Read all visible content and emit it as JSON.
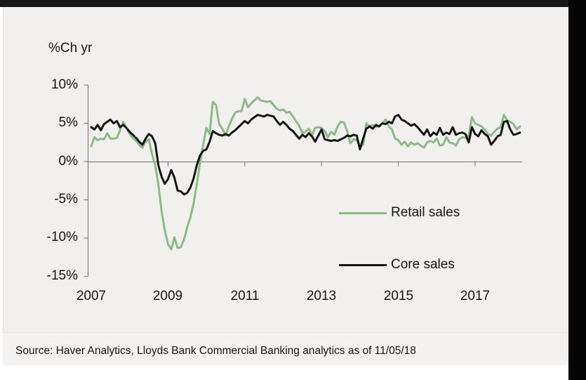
{
  "frame": {
    "top_bar_color": "#171717",
    "side_bar_color": "#050505",
    "panel_bg": "#f1f0ee"
  },
  "chart": {
    "axis_title": "%Ch yr",
    "legend": [
      {
        "label": "Retail sales",
        "color": "#8bba84"
      },
      {
        "label": "Core sales",
        "color": "#141414"
      }
    ],
    "source": "Source: Haver Analytics, Lloyds Bank Commercial Banking analytics as of 11/05/18"
  },
  "chart_data": {
    "type": "line",
    "title": "",
    "ylabel": "%Ch yr",
    "frequency": "monthly",
    "x_start": "2007-01",
    "x_end": "2018-03",
    "ylim": [
      -15,
      10
    ],
    "grid": false,
    "legend_position": "inside-right",
    "y_ticks": [
      "10%",
      "5%",
      "0%",
      "-5%",
      "-10%",
      "-15%"
    ],
    "x_ticks": [
      "2007",
      "2009",
      "2011",
      "2013",
      "2015",
      "2017"
    ],
    "series": [
      {
        "name": "Retail sales",
        "color": "#8bba84",
        "values": [
          2.0,
          3.2,
          2.8,
          3.0,
          2.9,
          3.7,
          3.0,
          3.0,
          3.1,
          4.1,
          5.2,
          4.4,
          3.6,
          3.1,
          2.7,
          2.2,
          1.8,
          2.6,
          2.9,
          1.0,
          -0.5,
          -3.0,
          -6.5,
          -9.0,
          -10.8,
          -11.5,
          -9.9,
          -11.3,
          -11.2,
          -10.2,
          -8.6,
          -7.3,
          -5.5,
          -3.0,
          -0.2,
          2.2,
          4.4,
          3.6,
          7.8,
          7.4,
          4.9,
          4.3,
          3.4,
          4.6,
          5.6,
          6.4,
          6.6,
          6.6,
          8.2,
          7.1,
          7.6,
          8.0,
          8.4,
          8.0,
          7.9,
          7.8,
          7.9,
          7.4,
          6.9,
          6.7,
          6.8,
          6.4,
          6.5,
          5.9,
          5.3,
          4.7,
          3.7,
          3.9,
          4.3,
          3.4,
          4.4,
          4.5,
          4.4,
          4.0,
          3.2,
          3.9,
          3.5,
          4.6,
          5.2,
          5.1,
          4.0,
          2.4,
          2.9,
          2.8,
          1.9,
          2.2,
          5.0,
          4.6,
          4.8,
          4.5,
          4.7,
          5.0,
          5.5,
          4.6,
          4.2,
          3.0,
          2.8,
          2.2,
          2.6,
          2.0,
          2.5,
          2.2,
          2.4,
          2.1,
          1.8,
          2.5,
          2.7,
          2.5,
          3.0,
          2.1,
          2.2,
          3.2,
          2.5,
          2.4,
          2.1,
          2.9,
          3.2,
          3.1,
          3.4,
          5.8,
          5.0,
          4.8,
          4.6,
          4.2,
          3.6,
          3.4,
          3.9,
          4.3,
          4.5,
          6.1,
          5.4,
          5.2,
          4.9,
          4.2,
          4.6
        ]
      },
      {
        "name": "Core sales",
        "color": "#141414",
        "values": [
          4.5,
          4.2,
          4.8,
          4.1,
          4.9,
          5.2,
          5.5,
          5.0,
          5.3,
          4.5,
          4.8,
          4.4,
          3.9,
          3.5,
          3.1,
          2.6,
          2.2,
          3.0,
          3.6,
          3.3,
          2.4,
          -0.5,
          -2.0,
          -2.9,
          -2.3,
          -1.1,
          -2.1,
          -3.8,
          -3.9,
          -4.3,
          -4.1,
          -3.4,
          -2.2,
          -0.5,
          0.8,
          1.4,
          1.6,
          2.6,
          4.0,
          3.7,
          3.5,
          3.4,
          3.6,
          3.4,
          3.8,
          4.1,
          4.5,
          4.9,
          5.3,
          5.0,
          5.5,
          5.8,
          6.1,
          6.0,
          5.9,
          6.1,
          6.0,
          5.9,
          5.3,
          4.8,
          5.2,
          4.8,
          4.3,
          4.0,
          3.5,
          3.0,
          3.5,
          3.2,
          3.7,
          3.3,
          2.6,
          3.4,
          4.2,
          2.9,
          2.8,
          2.7,
          2.8,
          2.7,
          2.9,
          3.1,
          3.4,
          3.3,
          3.5,
          3.4,
          1.6,
          3.0,
          4.3,
          4.6,
          4.3,
          4.8,
          4.6,
          5.0,
          4.9,
          5.2,
          5.0,
          5.9,
          6.1,
          5.5,
          5.3,
          5.0,
          4.7,
          4.9,
          4.5,
          4.0,
          3.5,
          4.2,
          3.3,
          3.8,
          3.5,
          4.4,
          3.5,
          3.8,
          3.6,
          4.5,
          3.5,
          3.7,
          3.8,
          3.6,
          2.5,
          4.5,
          3.6,
          3.3,
          4.1,
          3.6,
          3.3,
          2.2,
          2.7,
          3.3,
          3.5,
          5.2,
          5.3,
          4.2,
          3.5,
          3.6,
          3.8
        ]
      }
    ]
  }
}
